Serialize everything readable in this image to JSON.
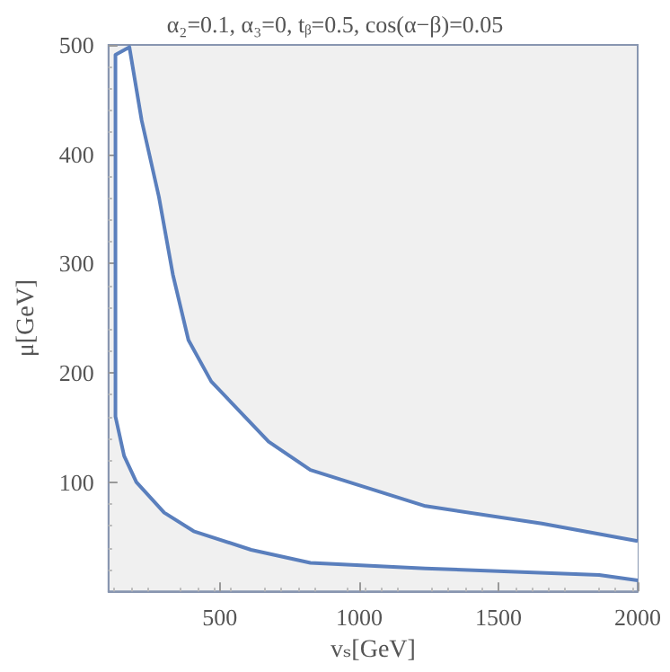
{
  "chart_data": {
    "type": "line",
    "title": "α₂=0.1, α₃=0, tᵦ=0.5, cos(α−β)=0.05",
    "xlabel": "vₛ[GeV]",
    "ylabel": "μ[GeV]",
    "xlim": [
      100,
      2000
    ],
    "ylim": [
      0,
      500
    ],
    "xticks": [
      500,
      1000,
      1500,
      2000
    ],
    "yticks": [
      100,
      200,
      300,
      400,
      500
    ],
    "grid": false,
    "marker": "none",
    "line_style": "solid",
    "series": [
      {
        "color": "#5a7fbd",
        "x": [
          2000,
          1862,
          1238,
          825,
          612,
          406,
          300,
          200,
          156,
          125,
          125,
          125,
          175,
          219,
          281,
          331,
          387,
          469,
          675,
          825,
          1238,
          1656,
          2000
        ],
        "values": [
          10,
          15,
          21,
          26,
          38,
          55,
          72,
          100,
          124,
          160,
          300,
          491,
          498,
          431,
          361,
          290,
          230,
          192,
          137,
          111,
          78,
          62,
          46
        ]
      }
    ]
  }
}
